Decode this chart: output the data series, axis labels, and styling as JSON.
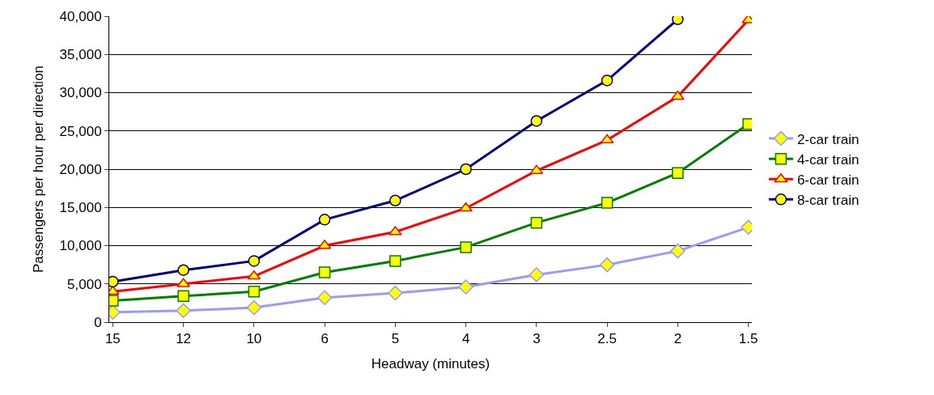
{
  "chart_data": {
    "type": "line",
    "xlabel": "Headway (minutes)",
    "ylabel": "Passengers per hour per direction",
    "categories": [
      "15",
      "12",
      "10",
      "6",
      "5",
      "4",
      "3",
      "2.5",
      "2",
      "1.5"
    ],
    "series": [
      {
        "name": "2-car train",
        "color": "#9999ff",
        "marker": "diamond",
        "values": [
          1300,
          1500,
          1900,
          3200,
          3800,
          4600,
          6200,
          7500,
          9300,
          12400
        ]
      },
      {
        "name": "4-car train",
        "color": "#008000",
        "marker": "square",
        "values": [
          2800,
          3400,
          4000,
          6500,
          8000,
          9800,
          13000,
          15600,
          19500,
          25900
        ]
      },
      {
        "name": "6-car train",
        "color": "#ff0000",
        "marker": "triangle",
        "values": [
          4000,
          5000,
          6000,
          10000,
          11800,
          14900,
          19800,
          23800,
          29500,
          39500
        ]
      },
      {
        "name": "8-car train",
        "color": "#000080",
        "marker": "circle",
        "values": [
          5300,
          6800,
          8000,
          13400,
          15900,
          20000,
          26300,
          31600,
          39600,
          null
        ]
      }
    ],
    "ylim": [
      0,
      40000
    ],
    "yticks": [
      {
        "value": 0,
        "label": "0"
      },
      {
        "value": 5000,
        "label": "5,000"
      },
      {
        "value": 10000,
        "label": "10,000"
      },
      {
        "value": 15000,
        "label": "15,000"
      },
      {
        "value": 20000,
        "label": "20,000"
      },
      {
        "value": 25000,
        "label": "25,000"
      },
      {
        "value": 30000,
        "label": "30,000"
      },
      {
        "value": 35000,
        "label": "35,000"
      },
      {
        "value": 40000,
        "label": "40,000"
      }
    ],
    "grid": "y",
    "legend": "right"
  }
}
